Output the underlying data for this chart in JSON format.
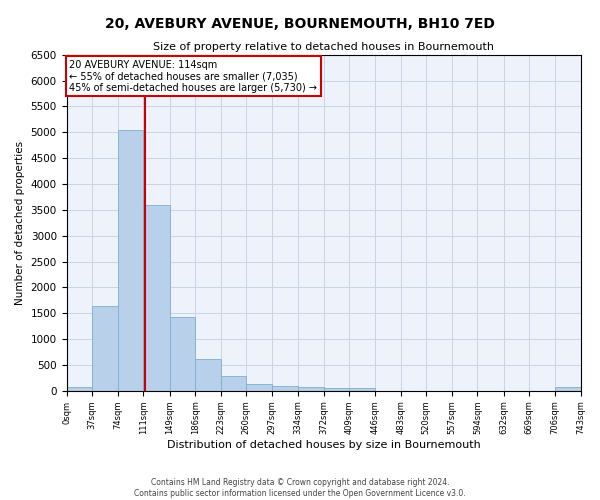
{
  "title": "20, AVEBURY AVENUE, BOURNEMOUTH, BH10 7ED",
  "subtitle": "Size of property relative to detached houses in Bournemouth",
  "xlabel": "Distribution of detached houses by size in Bournemouth",
  "ylabel": "Number of detached properties",
  "footer_line1": "Contains HM Land Registry data © Crown copyright and database right 2024.",
  "footer_line2": "Contains public sector information licensed under the Open Government Licence v3.0.",
  "bar_edges": [
    0,
    37,
    74,
    111,
    149,
    186,
    223,
    260,
    297,
    334,
    372,
    409,
    446,
    483,
    520,
    557,
    594,
    632,
    669,
    706,
    743
  ],
  "bar_heights": [
    75,
    1650,
    5050,
    3600,
    1420,
    620,
    285,
    140,
    100,
    75,
    60,
    60,
    0,
    0,
    0,
    0,
    0,
    0,
    0,
    75
  ],
  "bar_color": "#b8d0ea",
  "bar_edge_color": "#7aafd4",
  "property_size": 114,
  "property_line_color": "#cc0000",
  "annotation_text": "20 AVEBURY AVENUE: 114sqm\n← 55% of detached houses are smaller (7,035)\n45% of semi-detached houses are larger (5,730) →",
  "annotation_box_color": "#cc0000",
  "ylim": [
    0,
    6500
  ],
  "yticks": [
    0,
    500,
    1000,
    1500,
    2000,
    2500,
    3000,
    3500,
    4000,
    4500,
    5000,
    5500,
    6000,
    6500
  ],
  "grid_color": "#c8d4e8",
  "bg_color": "#eef2fa"
}
